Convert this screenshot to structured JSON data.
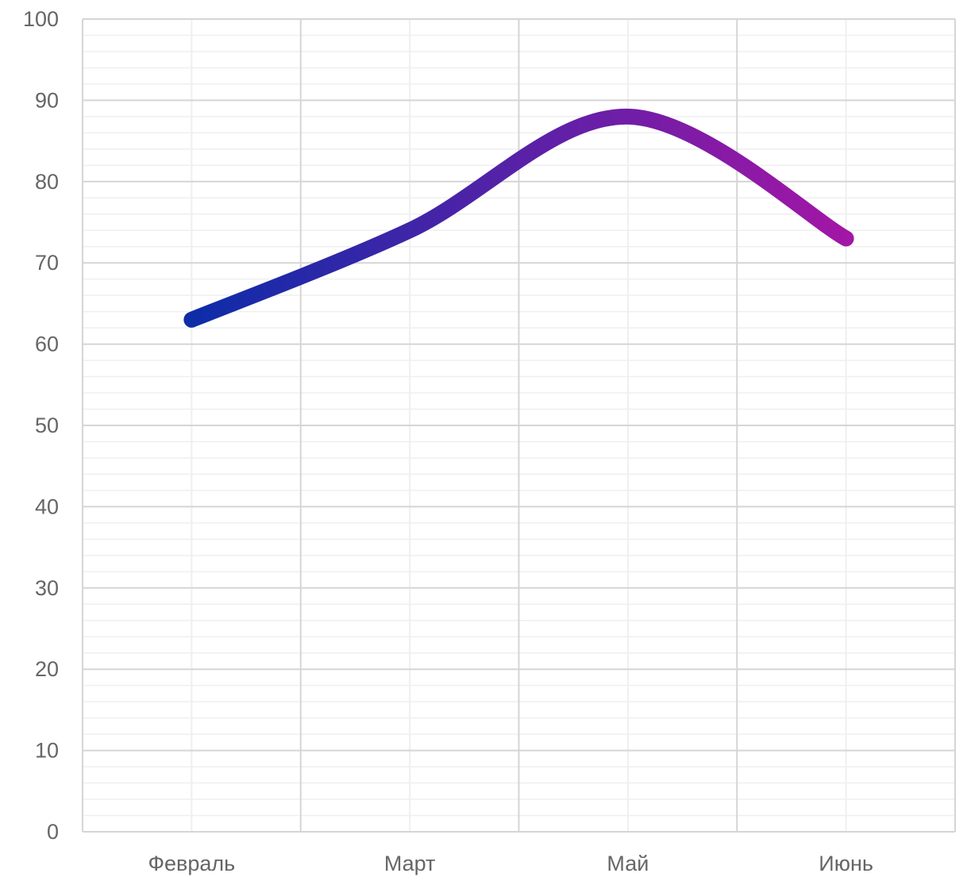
{
  "chart_data": {
    "type": "line",
    "categories": [
      "Февраль",
      "Март",
      "Май",
      "Июнь"
    ],
    "x_ticks": [
      "Февраль",
      "Март",
      "Май",
      "Июнь"
    ],
    "y_ticks": [
      "0",
      "10",
      "20",
      "30",
      "40",
      "50",
      "60",
      "70",
      "80",
      "90",
      "100"
    ],
    "ylim": [
      0,
      100
    ],
    "series": [
      {
        "values": [
          63,
          74,
          88,
          73
        ]
      }
    ],
    "grid": true,
    "line_gradient": {
      "start": "#0d2ca8",
      "end": "#a316a6"
    },
    "grid_color_major": "#d5d5d5",
    "grid_color_minor": "#efefef",
    "axis_label_color": "#666666"
  }
}
